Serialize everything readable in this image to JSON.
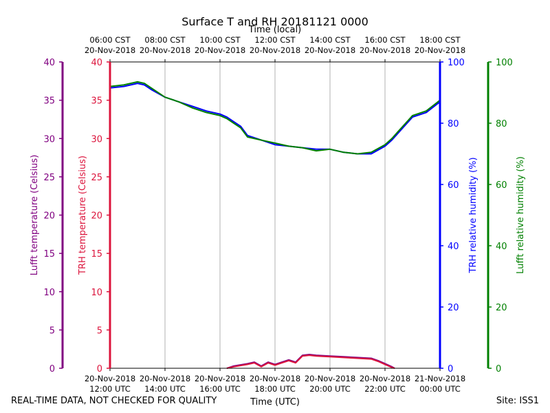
{
  "chart_data": {
    "type": "line",
    "title": "Surface T and RH 20181121 0000",
    "top_axis_label": "Time (local)",
    "bottom_axis_label": "Time (UTC)",
    "x_range_hours_utc": [
      12,
      24
    ],
    "bottom_ticks": [
      {
        "hour": 12,
        "date": "20-Nov-2018",
        "time": "12:00 UTC"
      },
      {
        "hour": 14,
        "date": "20-Nov-2018",
        "time": "14:00 UTC"
      },
      {
        "hour": 16,
        "date": "20-Nov-2018",
        "time": "16:00 UTC"
      },
      {
        "hour": 18,
        "date": "20-Nov-2018",
        "time": "18:00 UTC"
      },
      {
        "hour": 20,
        "date": "20-Nov-2018",
        "time": "20:00 UTC"
      },
      {
        "hour": 22,
        "date": "20-Nov-2018",
        "time": "22:00 UTC"
      },
      {
        "hour": 24,
        "date": "21-Nov-2018",
        "time": "00:00 UTC"
      }
    ],
    "top_ticks": [
      {
        "hour": 12,
        "time": "06:00 CST",
        "date": "20-Nov-2018"
      },
      {
        "hour": 14,
        "time": "08:00 CST",
        "date": "20-Nov-2018"
      },
      {
        "hour": 16,
        "time": "10:00 CST",
        "date": "20-Nov-2018"
      },
      {
        "hour": 18,
        "time": "12:00 CST",
        "date": "20-Nov-2018"
      },
      {
        "hour": 20,
        "time": "14:00 CST",
        "date": "20-Nov-2018"
      },
      {
        "hour": 22,
        "time": "16:00 CST",
        "date": "20-Nov-2018"
      },
      {
        "hour": 24,
        "time": "18:00 CST",
        "date": "20-Nov-2018"
      }
    ],
    "axes": {
      "lufft_temp": {
        "label": "Lufft temperature (Celsius)",
        "range": [
          0,
          40
        ],
        "ticks": [
          "0",
          "5",
          "10",
          "15",
          "20",
          "25",
          "30",
          "35",
          "40"
        ],
        "color": "#800080"
      },
      "trh_temp": {
        "label": "TRH temperature (Celsius)",
        "range": [
          0,
          40
        ],
        "ticks": [
          "0",
          "5",
          "10",
          "15",
          "20",
          "25",
          "30",
          "35",
          "40"
        ],
        "color": "#dc143c"
      },
      "trh_rh": {
        "label": "TRH relative humidity (%)",
        "range": [
          0,
          100
        ],
        "ticks": [
          "0",
          "20",
          "40",
          "60",
          "80",
          "100"
        ],
        "color": "#0000ff"
      },
      "lufft_rh": {
        "label": "Lufft relative humidity (%)",
        "range": [
          0,
          100
        ],
        "ticks": [
          "0",
          "20",
          "40",
          "60",
          "80",
          "100"
        ],
        "color": "#008000"
      }
    },
    "grid": "vertical",
    "series": [
      {
        "name": "TRH relative humidity",
        "axis": "trh_rh",
        "color": "#0000ff",
        "x": [
          12.0,
          12.5,
          13.0,
          13.25,
          13.5,
          14.0,
          14.5,
          15.0,
          15.5,
          16.0,
          16.25,
          16.5,
          16.75,
          17.0,
          17.5,
          18.0,
          18.5,
          19.0,
          19.5,
          20.0,
          20.5,
          21.0,
          21.5,
          22.0,
          22.25,
          22.5,
          22.75,
          23.0,
          23.5,
          24.0
        ],
        "values": [
          91.5,
          92.0,
          93.0,
          92.5,
          91.0,
          88.5,
          87.0,
          85.5,
          84.0,
          83.0,
          82.0,
          80.5,
          79.0,
          76.0,
          74.5,
          73.0,
          72.5,
          72.0,
          71.5,
          71.5,
          70.5,
          70.0,
          70.0,
          72.5,
          74.5,
          77.0,
          79.5,
          82.0,
          83.5,
          87.0
        ]
      },
      {
        "name": "Lufft relative humidity",
        "axis": "lufft_rh",
        "color": "#008000",
        "x": [
          12.0,
          12.5,
          13.0,
          13.25,
          13.5,
          14.0,
          14.5,
          15.0,
          15.5,
          16.0,
          16.25,
          16.5,
          16.75,
          17.0,
          17.5,
          18.0,
          18.5,
          19.0,
          19.5,
          20.0,
          20.5,
          21.0,
          21.5,
          22.0,
          22.25,
          22.5,
          22.75,
          23.0,
          23.5,
          24.0
        ],
        "values": [
          92.0,
          92.5,
          93.5,
          93.0,
          91.5,
          88.5,
          87.0,
          85.0,
          83.5,
          82.5,
          81.5,
          80.0,
          78.5,
          75.5,
          74.5,
          73.5,
          72.5,
          72.0,
          71.0,
          71.5,
          70.5,
          70.0,
          70.5,
          73.0,
          75.0,
          77.5,
          80.0,
          82.5,
          84.0,
          87.5
        ]
      },
      {
        "name": "Lufft temperature",
        "axis": "lufft_temp",
        "color": "#800080",
        "x": [
          16.25,
          16.5,
          17.0,
          17.25,
          17.5,
          17.75,
          18.0,
          18.25,
          18.5,
          18.75,
          19.0,
          19.25,
          19.5,
          20.0,
          20.5,
          21.0,
          21.5,
          21.75,
          22.0,
          22.25,
          22.35
        ],
        "values": [
          0.0,
          0.3,
          0.6,
          0.8,
          0.3,
          0.8,
          0.5,
          0.8,
          1.1,
          0.8,
          1.7,
          1.8,
          1.7,
          1.6,
          1.5,
          1.4,
          1.3,
          1.0,
          0.6,
          0.2,
          0.0
        ]
      },
      {
        "name": "TRH temperature",
        "axis": "trh_temp",
        "color": "#dc143c",
        "x": [
          16.25,
          16.5,
          17.0,
          17.25,
          17.5,
          17.75,
          18.0,
          18.25,
          18.5,
          18.75,
          19.0,
          19.25,
          19.5,
          20.0,
          20.5,
          21.0,
          21.5,
          21.75,
          22.0,
          22.25,
          22.35
        ],
        "values": [
          0.0,
          0.2,
          0.5,
          0.7,
          0.2,
          0.7,
          0.4,
          0.7,
          1.0,
          0.7,
          1.6,
          1.7,
          1.6,
          1.5,
          1.4,
          1.3,
          1.2,
          0.9,
          0.5,
          0.1,
          0.0
        ]
      }
    ]
  },
  "footer": {
    "quality_note": "REAL-TIME DATA, NOT CHECKED FOR QUALITY",
    "site": "Site: ISS1"
  }
}
